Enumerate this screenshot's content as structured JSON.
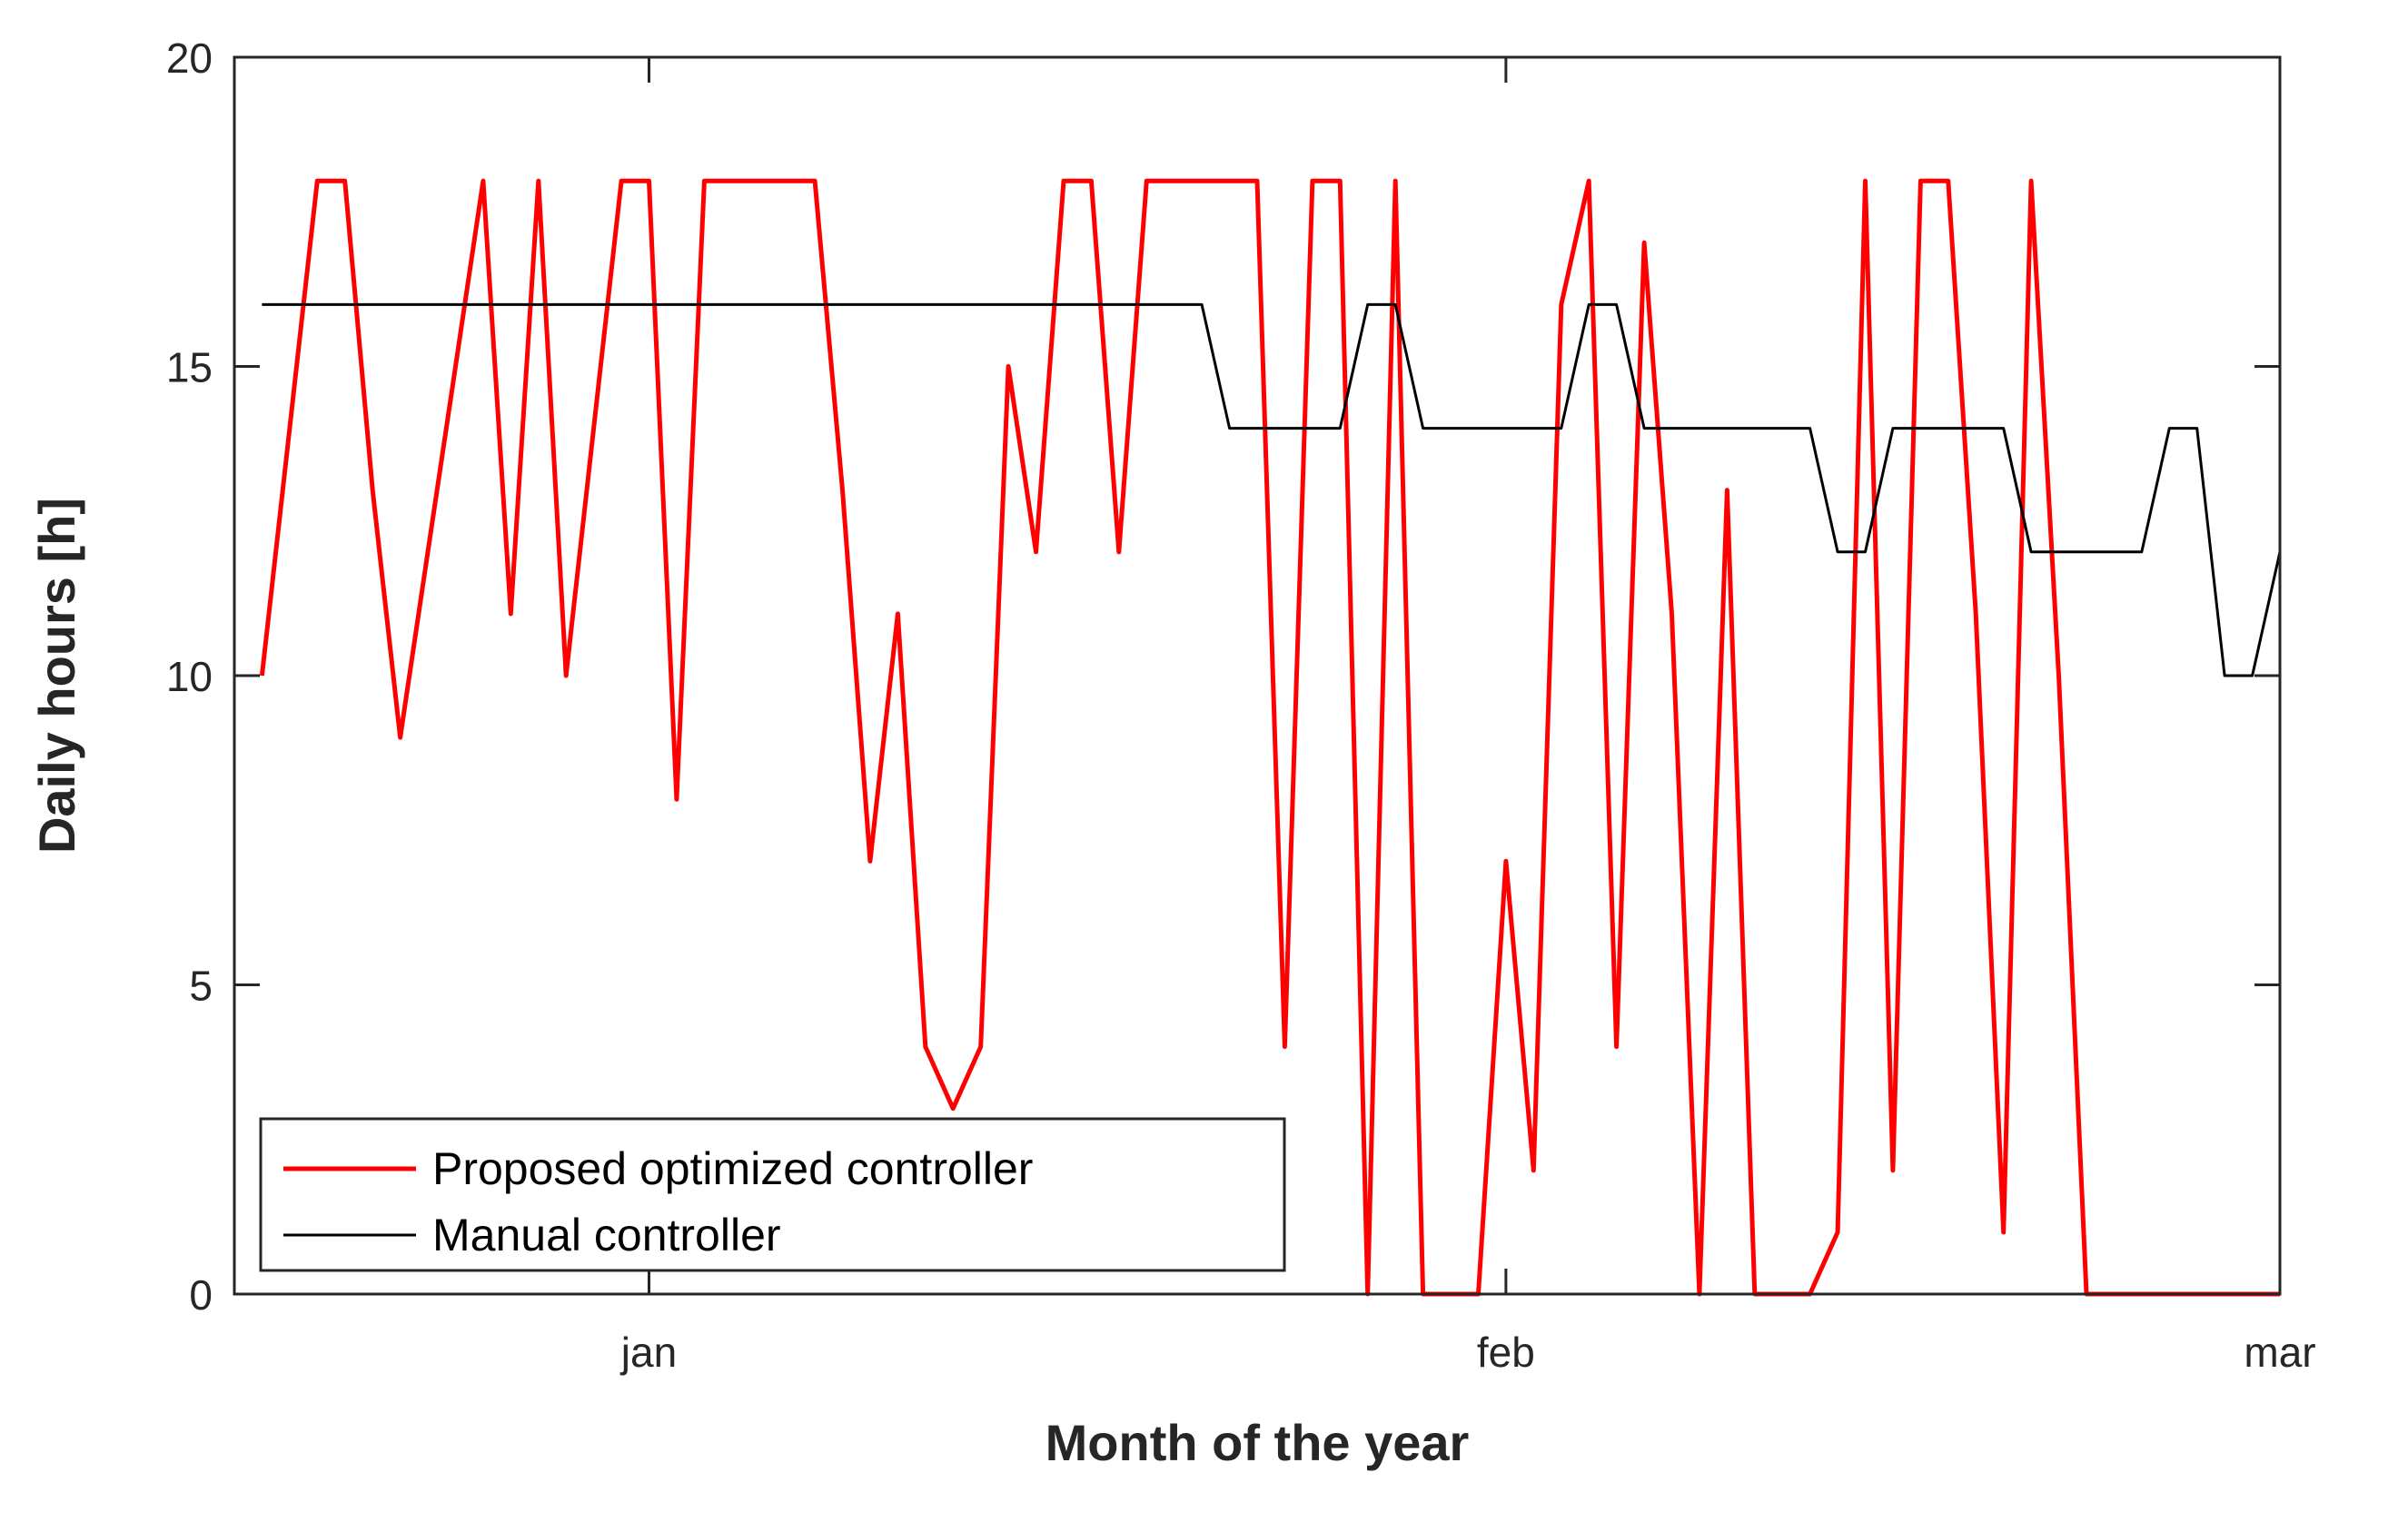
{
  "figure": {
    "background": "#ffffff",
    "axes_color": "#262626"
  },
  "chart_data": {
    "type": "line",
    "title": "",
    "xlabel": "Month of the year",
    "ylabel": "Daily hours [h]",
    "ylim": [
      0,
      20
    ],
    "yticks": [
      0,
      5,
      10,
      15,
      20
    ],
    "xticks": [
      {
        "label": "jan",
        "day_index": 14
      },
      {
        "label": "feb",
        "day_index": 45
      },
      {
        "label": "mar",
        "day_index": 73
      }
    ],
    "x_domain_days": [
      -1,
      73
    ],
    "grid": false,
    "legend_position": "lower-left",
    "x_dates": [
      "Dec 18",
      "Dec 19",
      "Dec 20",
      "Dec 21",
      "Dec 22",
      "Dec 23",
      "Dec 24",
      "Dec 25",
      "Dec 26",
      "Dec 27",
      "Dec 28",
      "Dec 29",
      "Dec 30",
      "Dec 31",
      "Jan 1",
      "Jan 2",
      "Jan 3",
      "Jan 4",
      "Jan 5",
      "Jan 6",
      "Jan 7",
      "Jan 8",
      "Jan 9",
      "Jan 10",
      "Jan 11",
      "Jan 12",
      "Jan 13",
      "Jan 14",
      "Jan 15",
      "Jan 16",
      "Jan 17",
      "Jan 18",
      "Jan 19",
      "Jan 20",
      "Jan 21",
      "Jan 22",
      "Jan 23",
      "Jan 24",
      "Jan 25",
      "Jan 26",
      "Jan 27",
      "Jan 28",
      "Jan 29",
      "Jan 30",
      "Jan 31",
      "Feb 1",
      "Feb 2",
      "Feb 3",
      "Feb 4",
      "Feb 5",
      "Feb 6",
      "Feb 7",
      "Feb 8",
      "Feb 9",
      "Feb 10",
      "Feb 11",
      "Feb 12",
      "Feb 13",
      "Feb 14",
      "Feb 15",
      "Feb 16",
      "Feb 17",
      "Feb 18",
      "Feb 19",
      "Feb 20",
      "Feb 21",
      "Feb 22",
      "Feb 23",
      "Feb 24",
      "Feb 25",
      "Feb 26",
      "Feb 27",
      "Feb 28",
      "Mar 1"
    ],
    "series": [
      {
        "name": "Proposed optimized controller",
        "color": "#ff0000",
        "line_width": 5,
        "values": [
          10,
          14,
          18,
          18,
          13,
          9,
          12,
          15,
          18,
          11,
          18,
          10,
          14,
          18,
          18,
          8,
          18,
          18,
          18,
          18,
          18,
          13,
          7,
          11,
          4,
          3,
          4,
          15,
          12,
          18,
          18,
          12,
          18,
          18,
          18,
          18,
          18,
          4,
          18,
          18,
          0,
          18,
          0,
          0,
          0,
          7,
          2,
          16,
          18,
          4,
          17,
          11,
          0,
          13,
          0,
          0,
          0,
          1,
          18,
          2,
          18,
          18,
          11,
          1,
          18,
          10,
          0,
          0,
          0,
          0,
          0,
          0,
          0,
          0
        ]
      },
      {
        "name": "Manual controller",
        "color": "#000000",
        "line_width": 3,
        "values": [
          16,
          16,
          16,
          16,
          16,
          16,
          16,
          16,
          16,
          16,
          16,
          16,
          16,
          16,
          16,
          16,
          16,
          16,
          16,
          16,
          16,
          16,
          16,
          16,
          16,
          16,
          16,
          16,
          16,
          16,
          16,
          16,
          16,
          16,
          16,
          14,
          14,
          14,
          14,
          14,
          16,
          16,
          14,
          14,
          14,
          14,
          14,
          14,
          16,
          16,
          14,
          14,
          14,
          14,
          14,
          14,
          14,
          12,
          12,
          14,
          14,
          14,
          14,
          14,
          12,
          12,
          12,
          12,
          12,
          14,
          14,
          10,
          10,
          12
        ]
      }
    ]
  }
}
